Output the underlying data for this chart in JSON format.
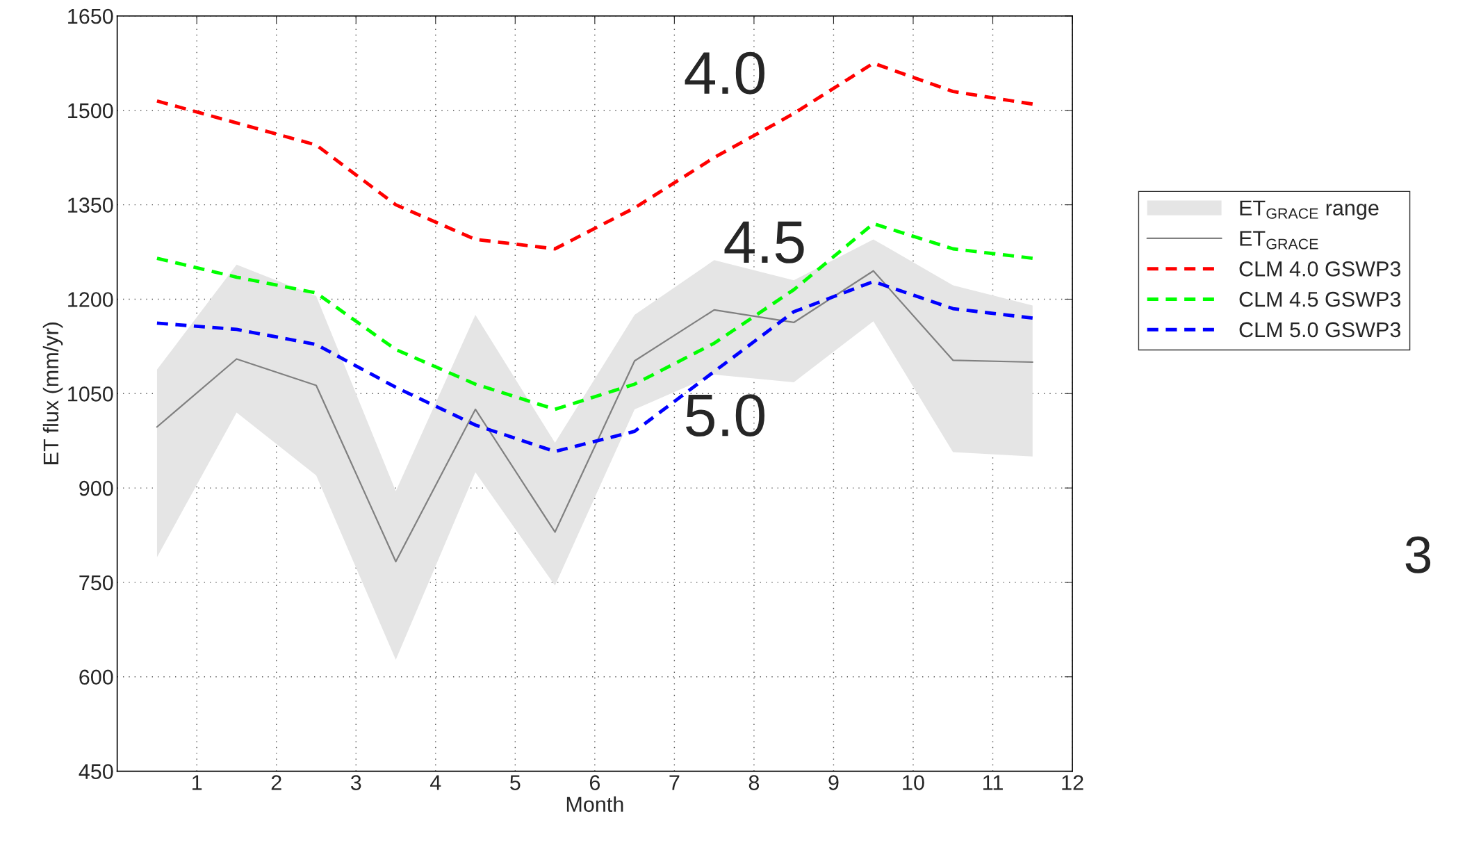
{
  "chart_data": {
    "type": "line",
    "xlabel": "Month",
    "ylabel": "ET flux (mm/yr)",
    "x": [
      0.5,
      1.5,
      2.5,
      3.5,
      4.5,
      5.5,
      6.5,
      7.5,
      8.5,
      9.5,
      10.5,
      11.5
    ],
    "series": [
      {
        "name": "ET$_{GRACE}$ range",
        "type": "area",
        "color": "#e5e5e5",
        "values": [
          null,
          null,
          null,
          null,
          null,
          null,
          null,
          null,
          null,
          null,
          null,
          null
        ],
        "lower": [
          790,
          1020,
          920,
          627,
          925,
          745,
          1025,
          1080,
          1068,
          1165,
          957,
          950
        ],
        "upper": [
          1088,
          1255,
          1205,
          895,
          1175,
          972,
          1175,
          1262,
          1230,
          1295,
          1222,
          1190
        ]
      },
      {
        "name": "ET$_{GRACE}$",
        "color": "#808080",
        "line_style": "solid",
        "values": [
          997,
          1105,
          1063,
          783,
          1025,
          830,
          1102,
          1183,
          1163,
          1245,
          1103,
          1100
        ]
      },
      {
        "name": "CLM 4.0 GSWP3",
        "color": "#ff0000",
        "line_style": "dashed",
        "values": [
          1515,
          1480,
          1445,
          1350,
          1295,
          1280,
          1345,
          1425,
          1495,
          1575,
          1530,
          1510
        ]
      },
      {
        "name": "CLM 4.5 GSWP3",
        "color": "#00ff00",
        "line_style": "dashed",
        "values": [
          1265,
          1235,
          1210,
          1120,
          1065,
          1025,
          1065,
          1130,
          1215,
          1320,
          1280,
          1265
        ]
      },
      {
        "name": "CLM 5.0 GSWP3",
        "color": "#0000ff",
        "line_style": "dashed",
        "values": [
          1162,
          1152,
          1128,
          1060,
          1000,
          958,
          990,
          1085,
          1180,
          1228,
          1185,
          1170
        ]
      }
    ],
    "xlim": [
      0,
      12
    ],
    "xticks": [
      1,
      2,
      3,
      4,
      5,
      6,
      7,
      8,
      9,
      10,
      11,
      12
    ],
    "ylim": [
      450,
      1650
    ],
    "yticks": [
      450,
      600,
      750,
      900,
      1050,
      1200,
      1350,
      1500,
      1650
    ],
    "grid": true,
    "legend": "right",
    "annotations": [
      "4.0",
      "4.5",
      "5.0",
      "3"
    ]
  }
}
